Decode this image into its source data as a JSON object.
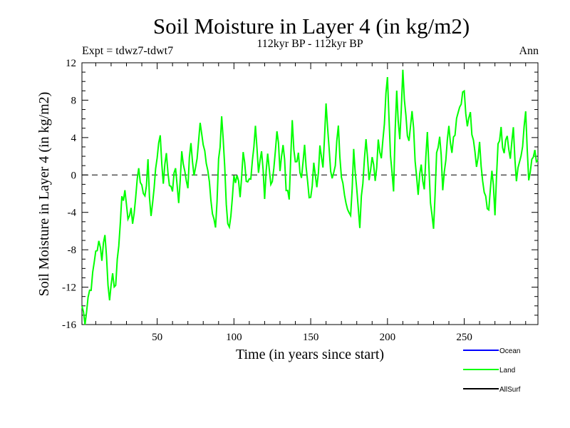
{
  "chart_data": {
    "type": "line",
    "title": "Soil Moisture in Layer 4 (in kg/m2)",
    "subtitle": "112kyr BP - 112kyr BP",
    "experiment": "Expt = tdwz7-tdwt7",
    "period": "Ann",
    "xlabel": "Time (in years since start)",
    "ylabel": "Soil Moisture in Layer 4 (in kg/m2)",
    "xlim": [
      1,
      298
    ],
    "ylim": [
      -16,
      12
    ],
    "xticks": [
      50,
      100,
      150,
      200,
      250
    ],
    "yticks": [
      -16,
      -12,
      -8,
      -4,
      0,
      4,
      8,
      12
    ],
    "zero_line": "dashed",
    "legend_position": "bottom-right",
    "legend": [
      {
        "name": "Ocean",
        "color": "#0000ff"
      },
      {
        "name": "Land",
        "color": "#00ff00"
      },
      {
        "name": "AllSurf",
        "color": "#000000"
      }
    ],
    "series": [
      {
        "name": "Land",
        "color": "#00ff00",
        "keypoints": [
          [
            1,
            -14
          ],
          [
            3,
            -15.5
          ],
          [
            5,
            -13
          ],
          [
            8,
            -11
          ],
          [
            10,
            -8
          ],
          [
            12,
            -7.5
          ],
          [
            14,
            -8.5
          ],
          [
            16,
            -6
          ],
          [
            17,
            -9
          ],
          [
            19,
            -13.5
          ],
          [
            21,
            -10
          ],
          [
            23,
            -12.5
          ],
          [
            25,
            -7
          ],
          [
            27,
            -3
          ],
          [
            29,
            -1.5
          ],
          [
            31,
            -5
          ],
          [
            33,
            -3
          ],
          [
            34,
            -6
          ],
          [
            36,
            -2
          ],
          [
            38,
            1
          ],
          [
            40,
            -1.5
          ],
          [
            42,
            -2
          ],
          [
            44,
            1
          ],
          [
            46,
            -5
          ],
          [
            48,
            -1
          ],
          [
            50,
            2
          ],
          [
            52,
            4
          ],
          [
            54,
            -0.5
          ],
          [
            56,
            3
          ],
          [
            58,
            -1
          ],
          [
            60,
            -2
          ],
          [
            62,
            1
          ],
          [
            64,
            -3
          ],
          [
            66,
            2
          ],
          [
            68,
            0.5
          ],
          [
            70,
            -1
          ],
          [
            72,
            4
          ],
          [
            74,
            -0.5
          ],
          [
            76,
            1
          ],
          [
            78,
            5
          ],
          [
            80,
            3
          ],
          [
            82,
            2
          ],
          [
            84,
            -0.5
          ],
          [
            86,
            -4
          ],
          [
            88,
            -6
          ],
          [
            90,
            1
          ],
          [
            92,
            6.5
          ],
          [
            94,
            1
          ],
          [
            96,
            -6
          ],
          [
            98,
            -5
          ],
          [
            100,
            0
          ],
          [
            102,
            -0.5
          ],
          [
            104,
            -2
          ],
          [
            106,
            3
          ],
          [
            108,
            -1
          ],
          [
            110,
            -1
          ],
          [
            112,
            1
          ],
          [
            114,
            6
          ],
          [
            116,
            1
          ],
          [
            118,
            2
          ],
          [
            120,
            -2
          ],
          [
            122,
            3
          ],
          [
            124,
            -1
          ],
          [
            126,
            1
          ],
          [
            128,
            5
          ],
          [
            130,
            1
          ],
          [
            132,
            4
          ],
          [
            134,
            -1
          ],
          [
            136,
            -2
          ],
          [
            138,
            6
          ],
          [
            140,
            1
          ],
          [
            142,
            2
          ],
          [
            144,
            -1
          ],
          [
            146,
            3
          ],
          [
            148,
            -0.5
          ],
          [
            150,
            -3
          ],
          [
            152,
            2
          ],
          [
            154,
            -1
          ],
          [
            156,
            3
          ],
          [
            158,
            1
          ],
          [
            160,
            7
          ],
          [
            162,
            3
          ],
          [
            164,
            -1
          ],
          [
            166,
            1
          ],
          [
            168,
            5
          ],
          [
            170,
            -1
          ],
          [
            172,
            -2
          ],
          [
            174,
            -4
          ],
          [
            176,
            -5
          ],
          [
            178,
            2
          ],
          [
            180,
            -2
          ],
          [
            182,
            -5
          ],
          [
            184,
            -1
          ],
          [
            186,
            4
          ],
          [
            188,
            -1
          ],
          [
            190,
            2
          ],
          [
            192,
            -1
          ],
          [
            194,
            4
          ],
          [
            196,
            1
          ],
          [
            198,
            6
          ],
          [
            200,
            11
          ],
          [
            202,
            2
          ],
          [
            204,
            -1
          ],
          [
            206,
            9
          ],
          [
            208,
            4
          ],
          [
            210,
            11
          ],
          [
            212,
            6
          ],
          [
            214,
            3
          ],
          [
            216,
            7
          ],
          [
            218,
            2
          ],
          [
            220,
            -2
          ],
          [
            222,
            1
          ],
          [
            224,
            -1
          ],
          [
            226,
            5
          ],
          [
            228,
            -3
          ],
          [
            230,
            -5
          ],
          [
            232,
            2
          ],
          [
            234,
            4
          ],
          [
            236,
            -1
          ],
          [
            238,
            2
          ],
          [
            240,
            6
          ],
          [
            242,
            2
          ],
          [
            244,
            5
          ],
          [
            246,
            7
          ],
          [
            248,
            8
          ],
          [
            250,
            9
          ],
          [
            252,
            5
          ],
          [
            254,
            6
          ],
          [
            256,
            3
          ],
          [
            258,
            1
          ],
          [
            260,
            4
          ],
          [
            262,
            -1
          ],
          [
            264,
            -3
          ],
          [
            266,
            -3.5
          ],
          [
            268,
            1
          ],
          [
            270,
            -4.5
          ],
          [
            272,
            3
          ],
          [
            274,
            5
          ],
          [
            276,
            2
          ],
          [
            278,
            4
          ],
          [
            280,
            2
          ],
          [
            282,
            5
          ],
          [
            284,
            -0.5
          ],
          [
            286,
            1
          ],
          [
            288,
            3
          ],
          [
            290,
            7
          ],
          [
            292,
            0
          ],
          [
            294,
            1
          ],
          [
            296,
            2
          ],
          [
            298,
            1
          ]
        ]
      }
    ]
  }
}
